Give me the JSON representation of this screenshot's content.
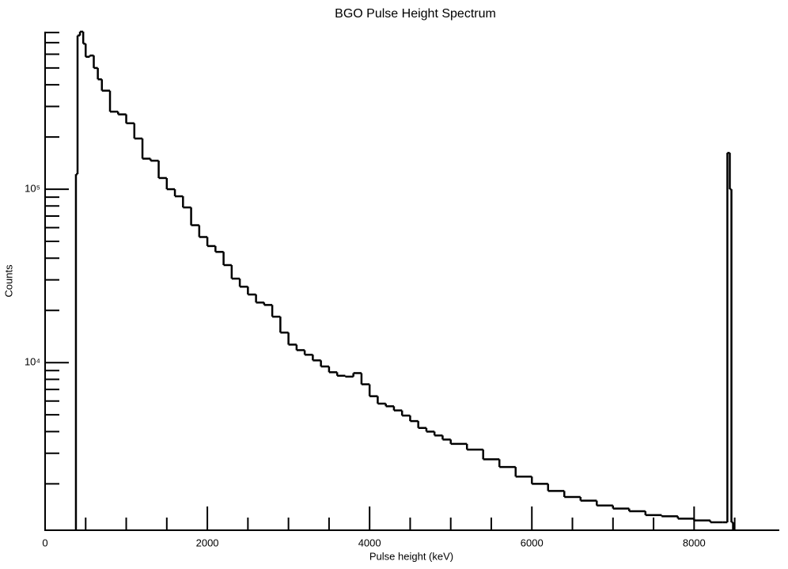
{
  "chart_data": {
    "type": "line",
    "step": true,
    "title": "BGO Pulse Height Spectrum",
    "xlabel": "Pulse height (keV)",
    "ylabel": "Counts",
    "x": [
      380,
      400,
      430,
      470,
      500,
      550,
      600,
      650,
      700,
      800,
      900,
      1000,
      1100,
      1200,
      1300,
      1400,
      1500,
      1600,
      1700,
      1800,
      1900,
      2000,
      2100,
      2200,
      2300,
      2400,
      2500,
      2600,
      2700,
      2800,
      2900,
      3000,
      3100,
      3200,
      3300,
      3400,
      3500,
      3600,
      3700,
      3800,
      3900,
      4000,
      4100,
      4200,
      4300,
      4400,
      4500,
      4600,
      4700,
      4800,
      4900,
      5000,
      5200,
      5400,
      5600,
      5800,
      6000,
      6200,
      6400,
      6600,
      6800,
      7000,
      7200,
      7400,
      7600,
      7800,
      8000,
      8200,
      8350,
      8410,
      8440,
      8460
    ],
    "series": [
      {
        "name": "Counts",
        "color": "#000000",
        "values": [
          122000,
          770000,
          810000,
          690000,
          580000,
          590000,
          500000,
          430000,
          370000,
          280000,
          270000,
          240000,
          196000,
          150000,
          146000,
          116000,
          100000,
          91000,
          78500,
          62000,
          53000,
          47000,
          43500,
          36500,
          30500,
          27400,
          24700,
          22200,
          21500,
          18400,
          14900,
          12700,
          11800,
          11100,
          10300,
          9500,
          8800,
          8400,
          8300,
          8700,
          7500,
          6400,
          5800,
          5600,
          5300,
          4950,
          4600,
          4200,
          4000,
          3800,
          3600,
          3400,
          3150,
          2770,
          2500,
          2200,
          2000,
          1820,
          1680,
          1600,
          1500,
          1440,
          1390,
          1320,
          1300,
          1260,
          1230,
          1200,
          1200,
          162000,
          100000,
          1200
        ]
      }
    ],
    "xlim": [
      0,
      9050
    ],
    "ylim": [
      1080,
      810000
    ],
    "log_y": true,
    "xticks": [
      0,
      2000,
      4000,
      6000,
      8000
    ],
    "xminor_ticks": [
      500,
      1000,
      1500,
      2500,
      3000,
      3500,
      4500,
      5000,
      5500,
      6500,
      7000,
      7500,
      8500
    ],
    "yticks": [
      {
        "value": 10000,
        "label": "10⁴"
      },
      {
        "value": 100000,
        "label": "10⁵"
      }
    ],
    "yminor_ticks": [
      2000,
      3000,
      4000,
      5000,
      6000,
      7000,
      8000,
      9000,
      20000,
      30000,
      40000,
      50000,
      60000,
      70000,
      80000,
      90000,
      200000,
      300000,
      400000,
      500000,
      600000,
      700000,
      800000
    ]
  }
}
